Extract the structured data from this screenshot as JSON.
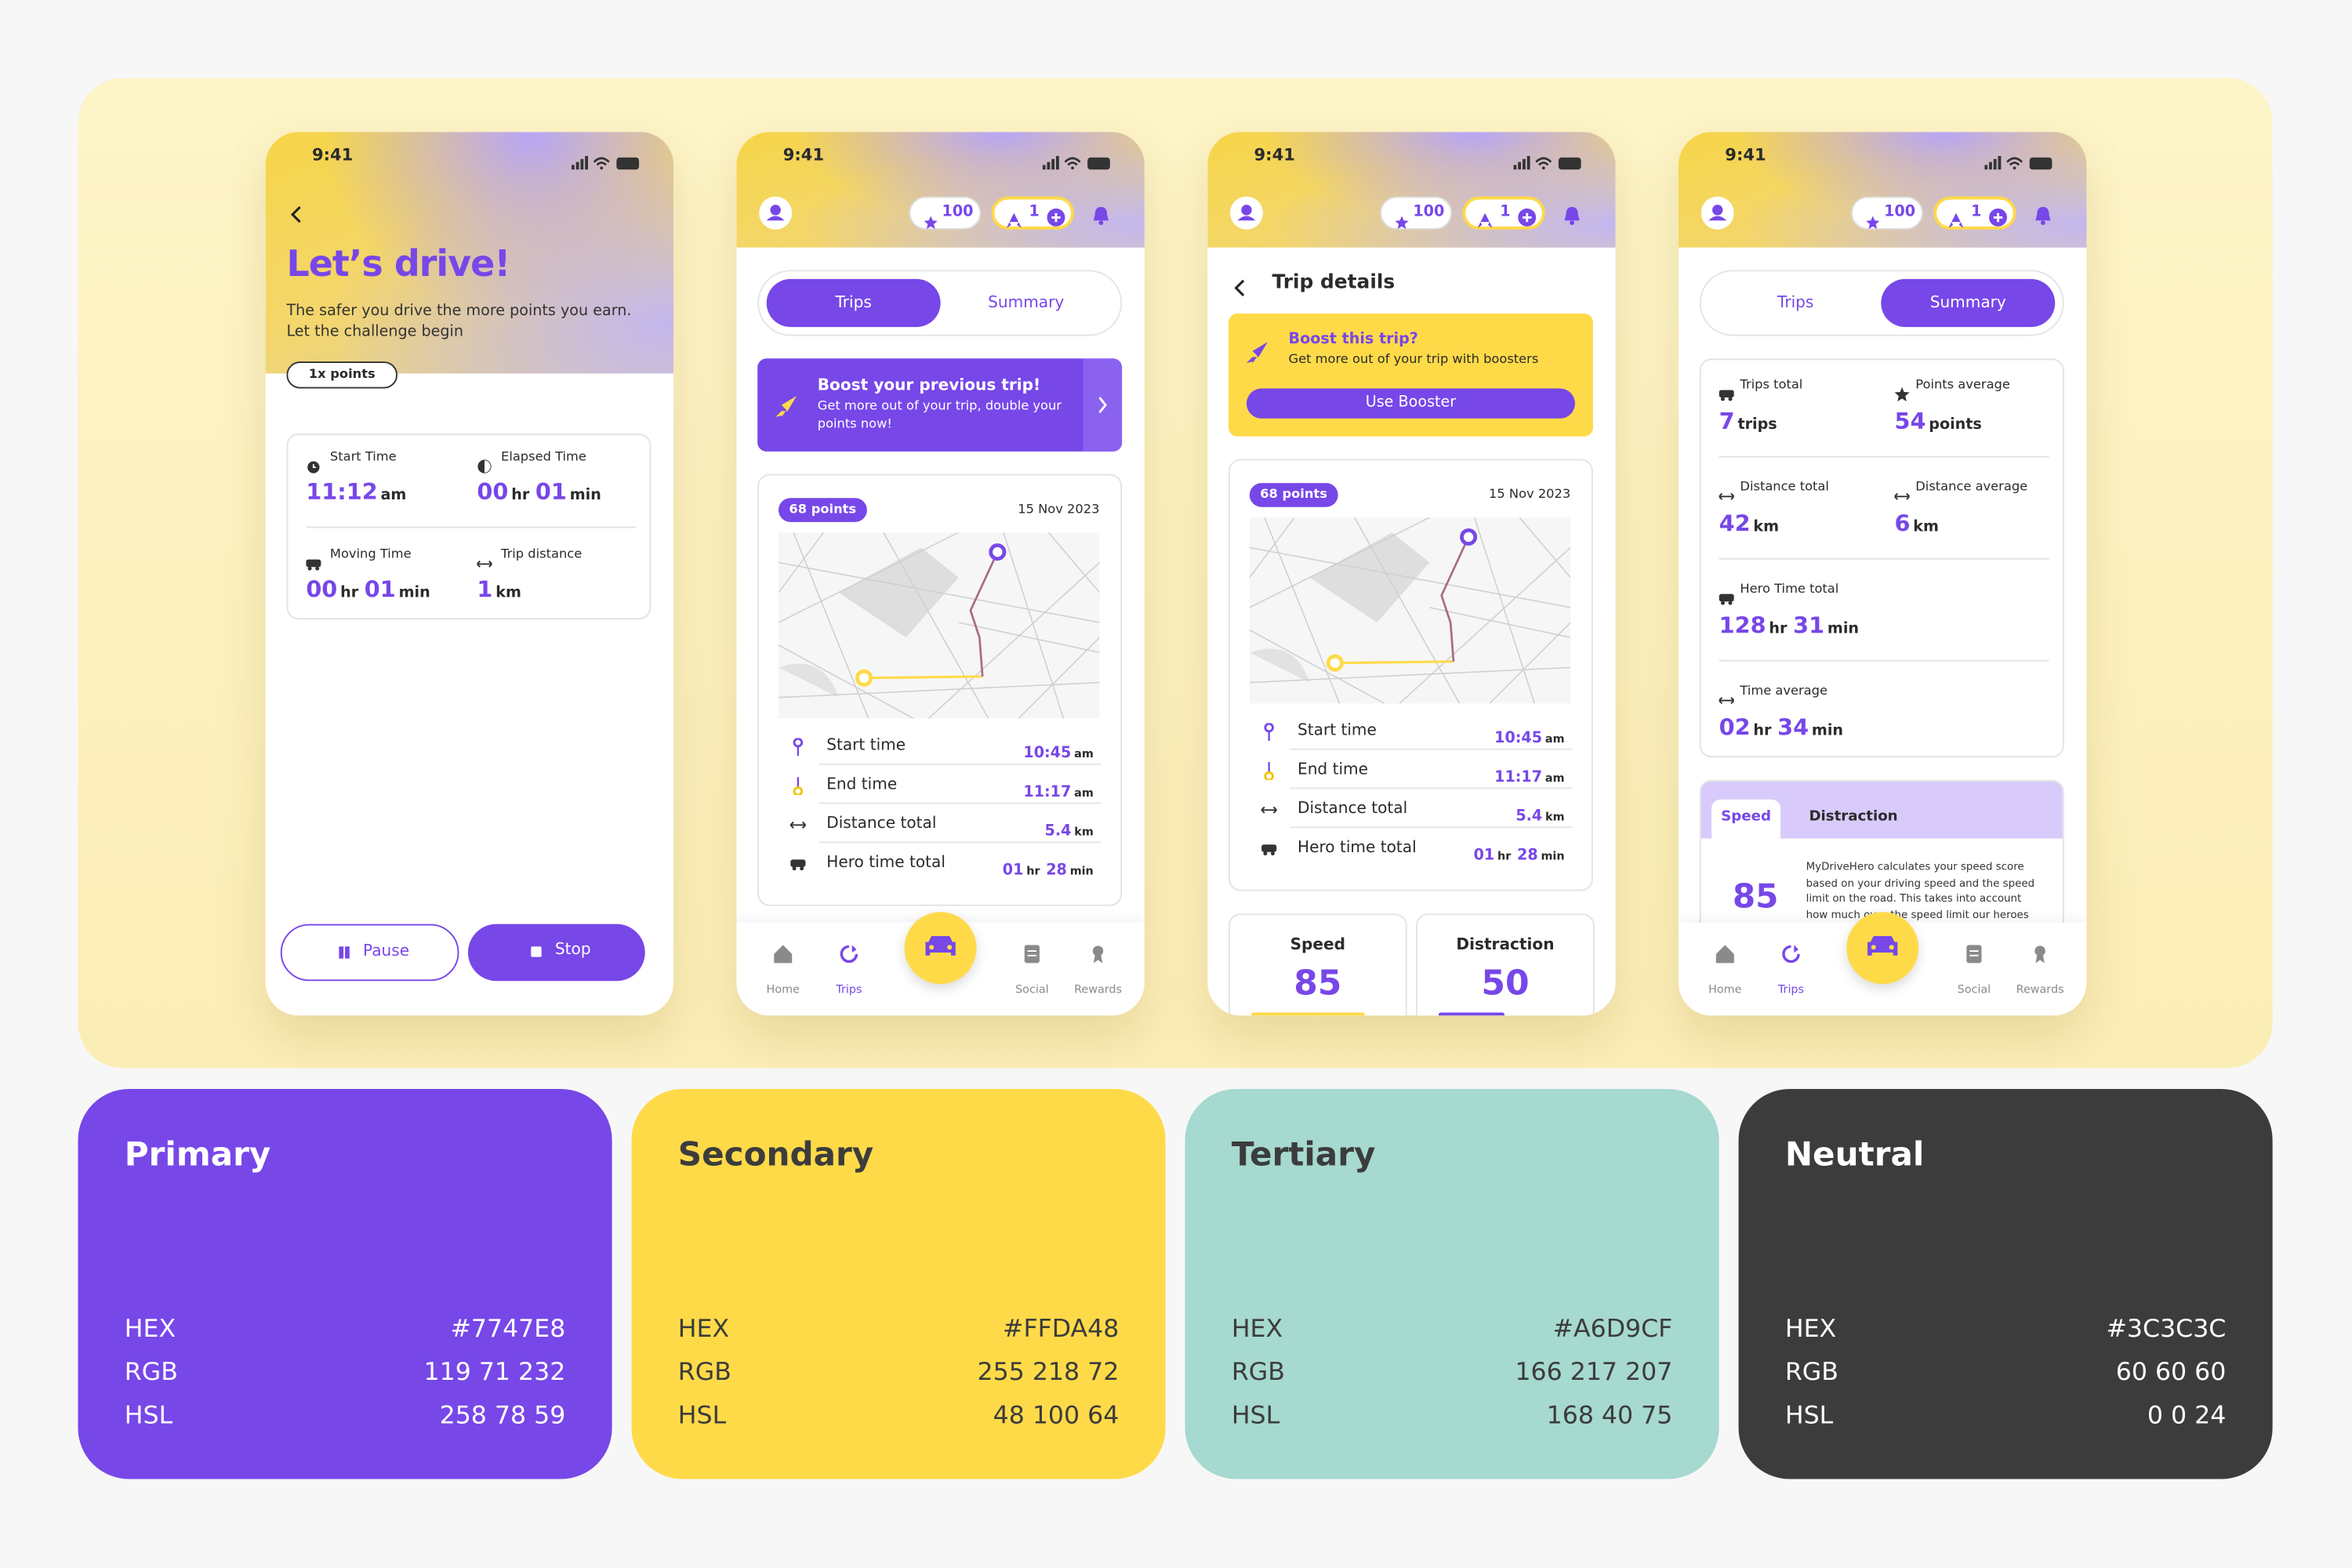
{
  "screens": [
    {
      "status_time": "9:41",
      "title": "Let’s drive!",
      "subtitle": "The safer you drive the more points you earn. Let the challenge begin",
      "badge": "1x points",
      "stats": [
        {
          "label": "Start Time",
          "value": [
            [
              "11:12",
              "am"
            ]
          ]
        },
        {
          "label": "Elapsed Time",
          "value": [
            [
              "00",
              "hr"
            ],
            [
              "01",
              "min"
            ]
          ]
        },
        {
          "label": "Moving Time",
          "value": [
            [
              "00",
              "hr"
            ],
            [
              "01",
              "min"
            ]
          ]
        },
        {
          "label": "Trip distance",
          "value": [
            [
              "1",
              "km"
            ]
          ]
        }
      ],
      "buttons": [
        "Pause",
        "Stop"
      ]
    },
    {
      "status_time": "9:41",
      "stars": "100",
      "boosts": "1",
      "tabs": [
        "Trips",
        "Summary"
      ],
      "banner": {
        "title": "Boost your previous trip!",
        "text": "Get more out of your trip, double your points now!"
      },
      "trip": {
        "points": "68 points",
        "date": "15 Nov 2023",
        "rows": [
          {
            "label": "Start time",
            "value": [
              [
                "10:45",
                "am"
              ]
            ]
          },
          {
            "label": "End time",
            "value": [
              [
                "11:17",
                "am"
              ]
            ]
          },
          {
            "label": "Distance total",
            "value": [
              [
                "5.4",
                "km"
              ]
            ]
          },
          {
            "label": "Hero time total",
            "value": [
              [
                "01",
                "hr"
              ],
              [
                "28",
                "min"
              ]
            ]
          }
        ]
      },
      "nav": [
        "Home",
        "Trips",
        "Social",
        "Rewards"
      ]
    },
    {
      "status_time": "9:41",
      "stars": "100",
      "boosts": "1",
      "header": "Trip details",
      "boost": {
        "title": "Boost this trip?",
        "text": "Get more out of your trip with boosters",
        "button": "Use Booster"
      },
      "trip": {
        "points": "68 points",
        "date": "15 Nov 2023",
        "rows": [
          {
            "label": "Start time",
            "value": [
              [
                "10:45",
                "am"
              ]
            ]
          },
          {
            "label": "End time",
            "value": [
              [
                "11:17",
                "am"
              ]
            ]
          },
          {
            "label": "Distance total",
            "value": [
              [
                "5.4",
                "km"
              ]
            ]
          },
          {
            "label": "Hero time total",
            "value": [
              [
                "01",
                "hr"
              ],
              [
                "28",
                "min"
              ]
            ]
          }
        ]
      },
      "scores": [
        {
          "label": "Speed",
          "value": "85"
        },
        {
          "label": "Distraction",
          "value": "50"
        }
      ]
    },
    {
      "status_time": "9:41",
      "stars": "100",
      "boosts": "1",
      "tabs": [
        "Trips",
        "Summary"
      ],
      "summary": [
        {
          "label": "Trips total",
          "value": [
            [
              "7",
              "trips"
            ]
          ]
        },
        {
          "label": "Points average",
          "value": [
            [
              "54",
              "points"
            ]
          ]
        },
        {
          "label": "Distance total",
          "value": [
            [
              "42",
              "km"
            ]
          ]
        },
        {
          "label": "Distance average",
          "value": [
            [
              "6",
              "km"
            ]
          ]
        },
        {
          "label": "Hero Time total",
          "value": [
            [
              "128",
              "hr"
            ],
            [
              "31",
              "min"
            ]
          ]
        },
        {
          "label": "Time average",
          "value": [
            [
              "02",
              "hr"
            ],
            [
              "34",
              "min"
            ]
          ]
        }
      ],
      "score_tabs": [
        "Speed",
        "Distraction"
      ],
      "score": "85",
      "score_text": "MyDriveHero calculates your speed score based on your driving speed and the speed limit on the road. This takes into account how much over the speed limit our heroes",
      "nav": [
        "Home",
        "Trips",
        "Social",
        "Rewards"
      ]
    }
  ],
  "palette": [
    {
      "name": "Primary",
      "rows": [
        {
          "label": "HEX",
          "value": "#7747E8"
        },
        {
          "label": "RGB",
          "value": "119 71 232"
        },
        {
          "label": "HSL",
          "value": "258 78 59"
        }
      ]
    },
    {
      "name": "Secondary",
      "rows": [
        {
          "label": "HEX",
          "value": "#FFDA48"
        },
        {
          "label": "RGB",
          "value": "255 218 72"
        },
        {
          "label": "HSL",
          "value": "48 100 64"
        }
      ]
    },
    {
      "name": "Tertiary",
      "rows": [
        {
          "label": "HEX",
          "value": "#A6D9CF"
        },
        {
          "label": "RGB",
          "value": "166 217 207"
        },
        {
          "label": "HSL",
          "value": "168 40 75"
        }
      ]
    },
    {
      "name": "Neutral",
      "rows": [
        {
          "label": "HEX",
          "value": "#3C3C3C"
        },
        {
          "label": "RGB",
          "value": "60 60 60"
        },
        {
          "label": "HSL",
          "value": "0 0 24"
        }
      ]
    }
  ]
}
